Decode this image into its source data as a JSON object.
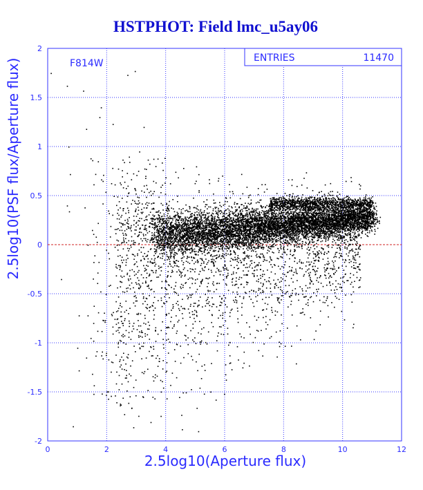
{
  "chart_data": {
    "type": "scatter",
    "title": "HSTPHOT: Field lmc_u5ay06",
    "xlabel": "2.5log10(Aperture flux)",
    "ylabel": "2.5log10(PSF flux/Aperture flux)",
    "xlim": [
      0,
      12
    ],
    "ylim": [
      -2,
      2
    ],
    "xticks": [
      "0",
      "2",
      "4",
      "6",
      "8",
      "10",
      "12"
    ],
    "yticks": [
      "-2",
      "-1.5",
      "-1",
      "-0.5",
      "0",
      "0.5",
      "1",
      "1.5",
      "2"
    ],
    "grid": true,
    "annotation": "F814W",
    "stats_box": {
      "label": "ENTRIES",
      "value": "11470",
      "placement": "top-right"
    },
    "reference_line": {
      "y": 0,
      "color": "#d02020",
      "style": "dashed"
    },
    "colors": {
      "frame": "#3333ff",
      "grid": "#3333ff",
      "text": "#2a2aff",
      "title": "#1010d0",
      "points": "#000000",
      "zero_line": "#d02020"
    },
    "entries": 11470,
    "density_model": {
      "note": "point cloud approximated from the screenshot; entries count is the printed value",
      "main_locus": {
        "x_range": [
          3.2,
          11.3
        ],
        "y_center_at_x4": 0.1,
        "y_center_at_x11": 0.28
      },
      "upper_branch": {
        "x_range": [
          7.5,
          11.0
        ],
        "y": 0.42
      },
      "sparse_points": [
        [
          0.1,
          1.75
        ],
        [
          0.65,
          1.62
        ],
        [
          1.2,
          1.57
        ],
        [
          2.7,
          1.73
        ],
        [
          2.95,
          1.77
        ],
        [
          1.8,
          1.4
        ],
        [
          1.75,
          1.3
        ],
        [
          2.2,
          1.23
        ],
        [
          1.3,
          1.18
        ],
        [
          3.25,
          1.2
        ],
        [
          0.7,
          1.0
        ],
        [
          1.45,
          0.88
        ],
        [
          1.7,
          0.85
        ],
        [
          3.1,
          0.95
        ],
        [
          0.75,
          0.72
        ],
        [
          0.65,
          0.4
        ],
        [
          1.25,
          0.38
        ],
        [
          0.72,
          0.34
        ],
        [
          1.5,
          0.15
        ],
        [
          1.35,
          0.0
        ],
        [
          0.45,
          -0.35
        ],
        [
          1.35,
          -0.72
        ],
        [
          1.05,
          -0.72
        ],
        [
          1.45,
          -0.95
        ],
        [
          1.0,
          -1.05
        ],
        [
          1.3,
          -1.15
        ],
        [
          1.05,
          -1.28
        ],
        [
          1.55,
          -1.52
        ],
        [
          2.45,
          -1.62
        ],
        [
          2.9,
          -1.45
        ],
        [
          0.85,
          -1.85
        ],
        [
          2.9,
          -1.86
        ],
        [
          4.55,
          -1.88
        ],
        [
          5.1,
          -1.9
        ],
        [
          6.45,
          -1.17
        ],
        [
          6.6,
          -1.25
        ],
        [
          5.3,
          -1.22
        ],
        [
          10.3,
          -0.58
        ],
        [
          10.55,
          0.62
        ],
        [
          10.1,
          0.65
        ]
      ]
    }
  }
}
